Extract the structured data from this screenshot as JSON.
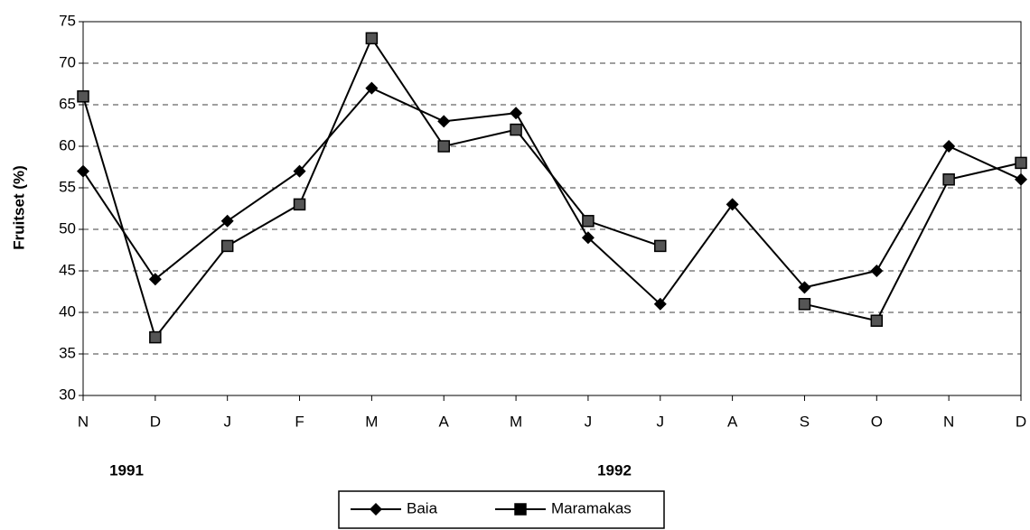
{
  "chart_data": {
    "type": "line",
    "y_label": "Fruitset (%)",
    "categories": [
      "N",
      "D",
      "J",
      "F",
      "M",
      "A",
      "M",
      "J",
      "J",
      "A",
      "S",
      "O",
      "N",
      "D"
    ],
    "annotations": [
      "1991",
      "1992"
    ],
    "series": [
      {
        "name": "Baia",
        "color": "#000000",
        "marker": "diamond",
        "values": [
          57,
          44,
          51,
          57,
          67,
          63,
          64,
          49,
          41,
          53,
          43,
          45,
          60,
          56
        ]
      },
      {
        "name": "Maramakas",
        "color": "#000000",
        "marker": "square",
        "values": [
          66,
          37,
          48,
          53,
          73,
          60,
          62,
          51,
          48,
          null,
          41,
          39,
          56,
          58
        ]
      }
    ],
    "ylim": [
      30,
      75
    ],
    "yticks": [
      30,
      35,
      40,
      45,
      50,
      55,
      60,
      65,
      70,
      75
    ],
    "grid": true,
    "legend": "bottom"
  }
}
